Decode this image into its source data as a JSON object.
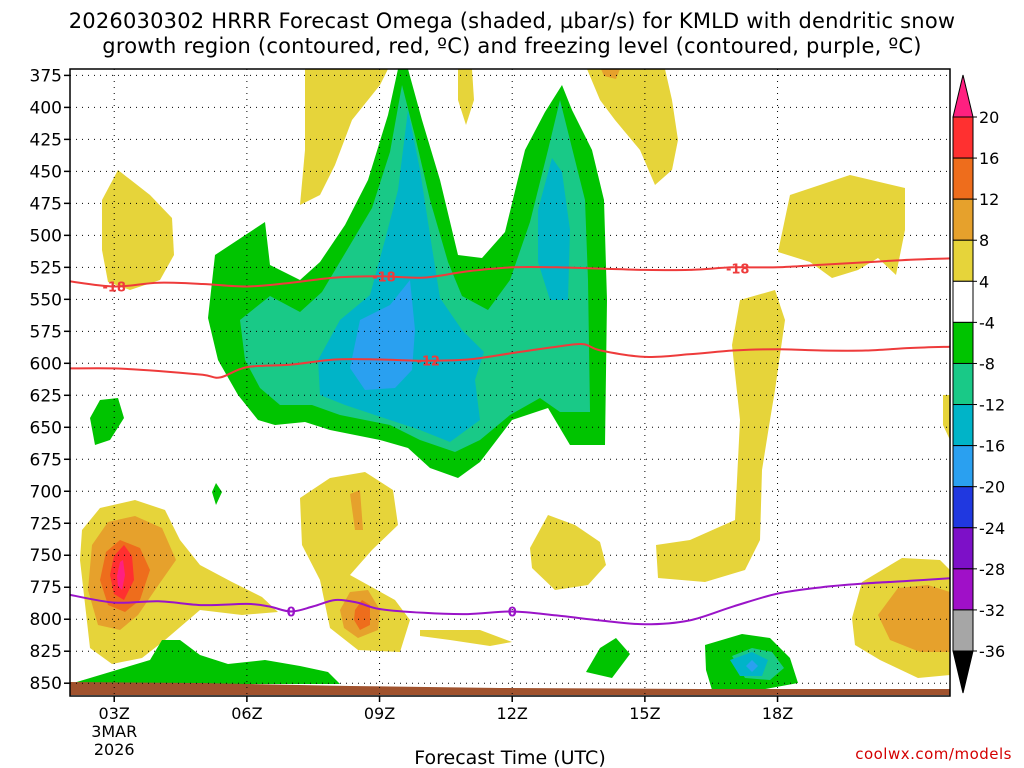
{
  "title_line1": "2026030302 HRRR Forecast Omega (shaded, µbar/s) for KMLD with dendritic snow",
  "title_line2": "growth region (contoured, red, ºC) and freezing level (contoured, purple, ºC)",
  "credit": "coolwx.com/models",
  "chart_data": {
    "type": "contour-cross-section",
    "title": "2026030302 HRRR Forecast Omega (shaded, µbar/s) for KMLD with dendritic snow growth region (contoured, red, ºC) and freezing level (contoured, purple, ºC)",
    "xlabel": "Forecast Time (UTC)",
    "ylabel": "",
    "x_range_hours": [
      2.0,
      21.9
    ],
    "y_range_mb": [
      370,
      860
    ],
    "y_scale": "reversed",
    "grid": true,
    "x_ticks": [
      {
        "hour": 3,
        "label": "03Z",
        "sublabel1": "3MAR",
        "sublabel2": "2026"
      },
      {
        "hour": 6,
        "label": "06Z"
      },
      {
        "hour": 9,
        "label": "09Z"
      },
      {
        "hour": 12,
        "label": "12Z"
      },
      {
        "hour": 15,
        "label": "15Z"
      },
      {
        "hour": 18,
        "label": "18Z"
      }
    ],
    "y_ticks": [
      375,
      400,
      425,
      450,
      475,
      500,
      525,
      550,
      575,
      600,
      625,
      650,
      675,
      700,
      725,
      750,
      775,
      800,
      825,
      850
    ],
    "colorbar": {
      "labels": [
        "20",
        "16",
        "12",
        "8",
        "4",
        "-4",
        "-8",
        "-12",
        "-16",
        "-20",
        "-24",
        "-28",
        "-32",
        "-36"
      ],
      "colors": [
        "#ff2080",
        "#ff3030",
        "#ee6d1c",
        "#e6a12c",
        "#e6d43a",
        "#ffffff",
        "#00c400",
        "#19c987",
        "#00b4c8",
        "#2aa0f0",
        "#2038e0",
        "#7d10c8",
        "#a010c8",
        "#a6a6a6",
        "#000000"
      ]
    },
    "colors": {
      "yellow": "#e6d43a",
      "orange_light": "#e6a12c",
      "orange": "#ee6d1c",
      "red": "#ff3030",
      "magenta": "#ff2080",
      "green": "#00c400",
      "green_teal": "#19c987",
      "teal": "#00b4c8",
      "blue": "#2aa0f0",
      "red_contour": "#ee3b3b",
      "purple_contour": "#9a14c8",
      "terrain": "#a0522d"
    },
    "contours": {
      "dgz_minus18": {
        "label": "-18",
        "points": [
          [
            2.0,
            536
          ],
          [
            3.0,
            540
          ],
          [
            4.0,
            537
          ],
          [
            5.0,
            538
          ],
          [
            6.0,
            540
          ],
          [
            7.0,
            537
          ],
          [
            8.0,
            533
          ],
          [
            9.0,
            532
          ],
          [
            10.0,
            533
          ],
          [
            11.0,
            528
          ],
          [
            12.0,
            525
          ],
          [
            13.0,
            525
          ],
          [
            14.0,
            526
          ],
          [
            15.0,
            527
          ],
          [
            16.0,
            527
          ],
          [
            17.0,
            525
          ],
          [
            18.0,
            525
          ],
          [
            19.0,
            523
          ],
          [
            20.0,
            521
          ],
          [
            21.0,
            519
          ],
          [
            21.9,
            518
          ]
        ],
        "label_positions": [
          [
            3.0,
            540
          ],
          [
            9.1,
            532
          ],
          [
            17.1,
            526
          ]
        ]
      },
      "dgz_minus12": {
        "label": "-12",
        "points": [
          [
            2.0,
            604
          ],
          [
            3.0,
            604
          ],
          [
            4.0,
            606
          ],
          [
            5.0,
            609
          ],
          [
            5.4,
            611
          ],
          [
            6.0,
            603
          ],
          [
            7.0,
            601
          ],
          [
            8.0,
            597
          ],
          [
            9.0,
            597
          ],
          [
            10.0,
            598
          ],
          [
            11.0,
            597
          ],
          [
            12.0,
            592
          ],
          [
            13.0,
            587
          ],
          [
            13.6,
            585
          ],
          [
            14.0,
            590
          ],
          [
            15.0,
            595
          ],
          [
            16.0,
            593
          ],
          [
            17.0,
            590
          ],
          [
            18.0,
            589
          ],
          [
            19.0,
            590
          ],
          [
            20.0,
            590
          ],
          [
            21.0,
            588
          ],
          [
            21.9,
            587
          ]
        ],
        "label_positions": [
          [
            10.1,
            598
          ]
        ]
      },
      "freezing_0": {
        "label": "0",
        "points": [
          [
            2.0,
            781
          ],
          [
            3.0,
            787
          ],
          [
            4.0,
            786
          ],
          [
            5.0,
            789
          ],
          [
            6.0,
            788
          ],
          [
            6.5,
            790
          ],
          [
            7.0,
            794
          ],
          [
            7.5,
            790
          ],
          [
            8.0,
            785
          ],
          [
            8.5,
            787
          ],
          [
            9.0,
            792
          ],
          [
            10.0,
            795
          ],
          [
            11.0,
            796
          ],
          [
            12.0,
            794
          ],
          [
            13.0,
            797
          ],
          [
            14.0,
            801
          ],
          [
            15.0,
            804
          ],
          [
            16.0,
            801
          ],
          [
            17.0,
            790
          ],
          [
            18.0,
            780
          ],
          [
            19.0,
            775
          ],
          [
            20.0,
            772
          ],
          [
            21.0,
            770
          ],
          [
            21.9,
            768
          ]
        ],
        "label_positions": [
          [
            7.0,
            794
          ],
          [
            12.0,
            794
          ]
        ]
      }
    }
  }
}
